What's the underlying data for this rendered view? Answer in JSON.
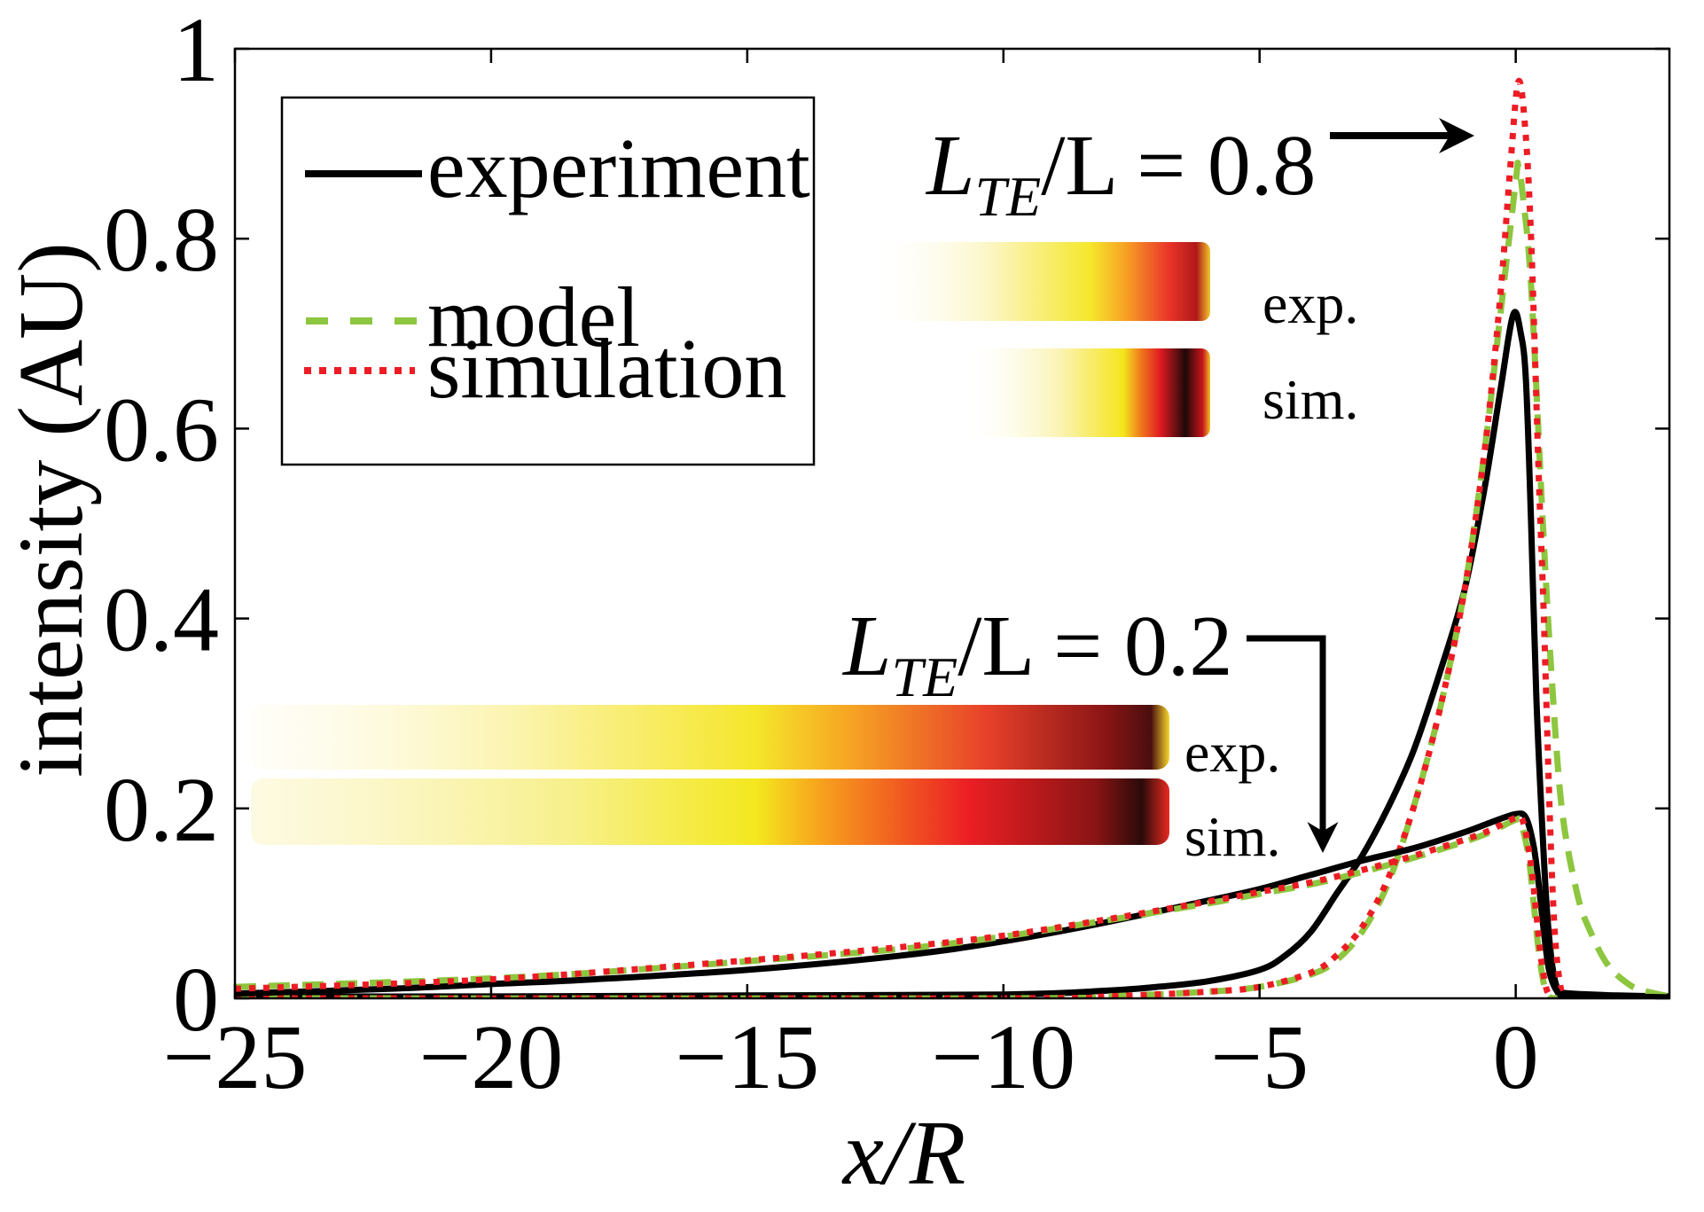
{
  "chart_data": {
    "type": "line",
    "title": "",
    "xlabel": "x/R",
    "ylabel": "intensity (AU)",
    "xlim": [
      -25,
      3
    ],
    "ylim": [
      0,
      1
    ],
    "grid": false,
    "legend_position": "top-left",
    "x_ticks": [
      -25,
      -20,
      -15,
      -10,
      -5,
      0
    ],
    "x_tick_labels": [
      "−25",
      "−20",
      "−15",
      "−10",
      "−5",
      "0"
    ],
    "y_ticks": [
      0,
      0.2,
      0.4,
      0.6,
      0.8,
      1
    ],
    "y_tick_labels": [
      "0",
      "0.2",
      "0.4",
      "0.6",
      "0.8",
      "1"
    ],
    "legend": [
      {
        "name": "experiment",
        "style": "solid",
        "color": "#000000"
      },
      {
        "name": "model",
        "style": "dashed",
        "color": "#8dc63f"
      },
      {
        "name": "simulation",
        "style": "dotted",
        "color": "#ed1c24"
      }
    ],
    "groups": [
      {
        "label_main": "L",
        "label_sub": "TE",
        "label_rest": "/L = 0.8",
        "ratio": 0.8,
        "series": [
          {
            "name": "experiment",
            "points": [
              [
                -25,
                0.002
              ],
              [
                -20,
                0.002
              ],
              [
                -15,
                0.003
              ],
              [
                -10,
                0.004
              ],
              [
                -8,
                0.008
              ],
              [
                -7,
                0.012
              ],
              [
                -6,
                0.018
              ],
              [
                -5,
                0.03
              ],
              [
                -4.5,
                0.045
              ],
              [
                -4,
                0.07
              ],
              [
                -3.5,
                0.11
              ],
              [
                -3,
                0.15
              ],
              [
                -2.5,
                0.2
              ],
              [
                -2,
                0.26
              ],
              [
                -1.5,
                0.34
              ],
              [
                -1,
                0.43
              ],
              [
                -0.6,
                0.54
              ],
              [
                -0.3,
                0.64
              ],
              [
                -0.05,
                0.72
              ],
              [
                0.1,
                0.7
              ],
              [
                0.2,
                0.65
              ],
              [
                0.3,
                0.5
              ],
              [
                0.4,
                0.32
              ],
              [
                0.5,
                0.2
              ],
              [
                0.6,
                0.1
              ],
              [
                0.7,
                0.04
              ],
              [
                0.8,
                0.012
              ],
              [
                0.9,
                0.006
              ],
              [
                1.5,
                0.004
              ],
              [
                2,
                0.003
              ],
              [
                3,
                0.002
              ]
            ]
          },
          {
            "name": "model",
            "points": [
              [
                -25,
                0.0
              ],
              [
                -10,
                0.0
              ],
              [
                -8,
                0.002
              ],
              [
                -6,
                0.007
              ],
              [
                -5,
                0.012
              ],
              [
                -4,
                0.025
              ],
              [
                -3.5,
                0.04
              ],
              [
                -3,
                0.07
              ],
              [
                -2.5,
                0.12
              ],
              [
                -2,
                0.2
              ],
              [
                -1.5,
                0.3
              ],
              [
                -1,
                0.43
              ],
              [
                -0.6,
                0.58
              ],
              [
                -0.3,
                0.72
              ],
              [
                0,
                0.86
              ],
              [
                0.05,
                0.877
              ],
              [
                0.15,
                0.84
              ],
              [
                0.3,
                0.75
              ],
              [
                0.54,
                0.49
              ],
              [
                0.7,
                0.34
              ],
              [
                0.9,
                0.2
              ],
              [
                1.2,
                0.11
              ],
              [
                1.46,
                0.07
              ],
              [
                1.8,
                0.035
              ],
              [
                2.2,
                0.015
              ],
              [
                2.5,
                0.008
              ],
              [
                3,
                0.002
              ]
            ]
          },
          {
            "name": "simulation",
            "points": [
              [
                -25,
                0.0
              ],
              [
                -10,
                0.0
              ],
              [
                -8,
                0.002
              ],
              [
                -6,
                0.007
              ],
              [
                -5,
                0.012
              ],
              [
                -4,
                0.027
              ],
              [
                -3.5,
                0.045
              ],
              [
                -3,
                0.075
              ],
              [
                -2.5,
                0.125
              ],
              [
                -2,
                0.2
              ],
              [
                -1.5,
                0.3
              ],
              [
                -1,
                0.43
              ],
              [
                -0.6,
                0.58
              ],
              [
                -0.3,
                0.74
              ],
              [
                -0.1,
                0.88
              ],
              [
                0.05,
                0.965
              ],
              [
                0.18,
                0.92
              ],
              [
                0.3,
                0.8
              ],
              [
                0.45,
                0.55
              ],
              [
                0.55,
                0.4
              ],
              [
                0.66,
                0.2
              ],
              [
                0.75,
                0.08
              ],
              [
                0.85,
                0.02
              ],
              [
                0.95,
                0.003
              ],
              [
                1.2,
                0.0
              ]
            ]
          }
        ]
      },
      {
        "label_main": "L",
        "label_sub": "TE",
        "label_rest": "/L = 0.2",
        "ratio": 0.2,
        "series": [
          {
            "name": "experiment",
            "points": [
              [
                -25,
                0.005
              ],
              [
                -22,
                0.01
              ],
              [
                -20,
                0.015
              ],
              [
                -18,
                0.02
              ],
              [
                -15,
                0.03
              ],
              [
                -12,
                0.045
              ],
              [
                -10,
                0.06
              ],
              [
                -8,
                0.08
              ],
              [
                -6,
                0.103
              ],
              [
                -5,
                0.115
              ],
              [
                -4,
                0.13
              ],
              [
                -3,
                0.145
              ],
              [
                -2,
                0.158
              ],
              [
                -1,
                0.175
              ],
              [
                -0.5,
                0.185
              ],
              [
                0,
                0.194
              ],
              [
                0.2,
                0.19
              ],
              [
                0.35,
                0.16
              ],
              [
                0.45,
                0.12
              ],
              [
                0.55,
                0.07
              ],
              [
                0.65,
                0.03
              ],
              [
                0.8,
                0.008
              ],
              [
                1.0,
                0.003
              ],
              [
                2,
                0.002
              ],
              [
                3,
                0.001
              ]
            ]
          },
          {
            "name": "model",
            "points": [
              [
                -25,
                0.012
              ],
              [
                -22,
                0.017
              ],
              [
                -20,
                0.021
              ],
              [
                -18,
                0.027
              ],
              [
                -15,
                0.039
              ],
              [
                -12,
                0.052
              ],
              [
                -10,
                0.065
              ],
              [
                -8,
                0.082
              ],
              [
                -6,
                0.1
              ],
              [
                -5,
                0.11
              ],
              [
                -4,
                0.12
              ],
              [
                -3,
                0.133
              ],
              [
                -2,
                0.148
              ],
              [
                -1,
                0.165
              ],
              [
                -0.5,
                0.175
              ],
              [
                0,
                0.188
              ],
              [
                0.1,
                0.185
              ],
              [
                0.25,
                0.15
              ],
              [
                0.35,
                0.1
              ],
              [
                0.45,
                0.05
              ],
              [
                0.55,
                0.015
              ],
              [
                0.65,
                0.002
              ],
              [
                0.8,
                0.0
              ]
            ]
          },
          {
            "name": "simulation",
            "points": [
              [
                -25,
                0.01
              ],
              [
                -20,
                0.02
              ],
              [
                -15,
                0.04
              ],
              [
                -12,
                0.054
              ],
              [
                -10,
                0.066
              ],
              [
                -8,
                0.083
              ],
              [
                -6,
                0.102
              ],
              [
                -5,
                0.112
              ],
              [
                -4,
                0.122
              ],
              [
                -3,
                0.135
              ],
              [
                -2,
                0.15
              ],
              [
                -1,
                0.167
              ],
              [
                -0.5,
                0.177
              ],
              [
                0,
                0.19
              ],
              [
                0.15,
                0.185
              ],
              [
                0.3,
                0.14
              ],
              [
                0.4,
                0.09
              ],
              [
                0.5,
                0.04
              ],
              [
                0.6,
                0.01
              ],
              [
                0.7,
                0.001
              ]
            ]
          }
        ]
      }
    ],
    "inset_labels": {
      "exp": "exp.",
      "sim": "sim."
    }
  }
}
